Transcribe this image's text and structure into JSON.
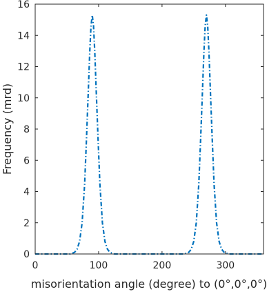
{
  "chart_data": {
    "type": "line",
    "title": "",
    "xlabel": "misorientation angle (degree) to (0°,0°,0°)",
    "ylabel": "Frequency (mrd)",
    "xlim": [
      0,
      360
    ],
    "ylim": [
      0,
      16
    ],
    "xticks": [
      "0",
      "100",
      "200",
      "300"
    ],
    "yticks": [
      "0",
      "2",
      "4",
      "6",
      "8",
      "10",
      "12",
      "14",
      "16"
    ],
    "grid": false,
    "box": true,
    "line_style": "dash-dot",
    "line_color": "#0072BD",
    "series": [
      {
        "x": [
          0,
          55,
          62,
          66,
          70,
          74,
          78,
          81,
          84,
          86,
          88,
          90,
          92,
          94,
          96,
          99,
          102,
          106,
          110,
          114,
          118,
          125,
          235,
          242,
          246,
          250,
          254,
          258,
          261,
          264,
          266,
          268,
          270,
          272,
          274,
          276,
          279,
          282,
          286,
          290,
          294,
          298,
          305,
          360
        ],
        "y": [
          0,
          0,
          0.1,
          0.3,
          0.8,
          2.0,
          4.5,
          7.5,
          10.7,
          12.9,
          14.6,
          15.3,
          14.6,
          12.9,
          10.7,
          7.5,
          4.5,
          2.0,
          0.8,
          0.3,
          0.1,
          0,
          0,
          0.1,
          0.3,
          0.8,
          2.0,
          4.5,
          7.5,
          10.7,
          12.9,
          14.6,
          15.3,
          14.6,
          12.9,
          10.7,
          7.5,
          4.5,
          2.0,
          0.8,
          0.3,
          0.1,
          0,
          0
        ]
      }
    ]
  }
}
